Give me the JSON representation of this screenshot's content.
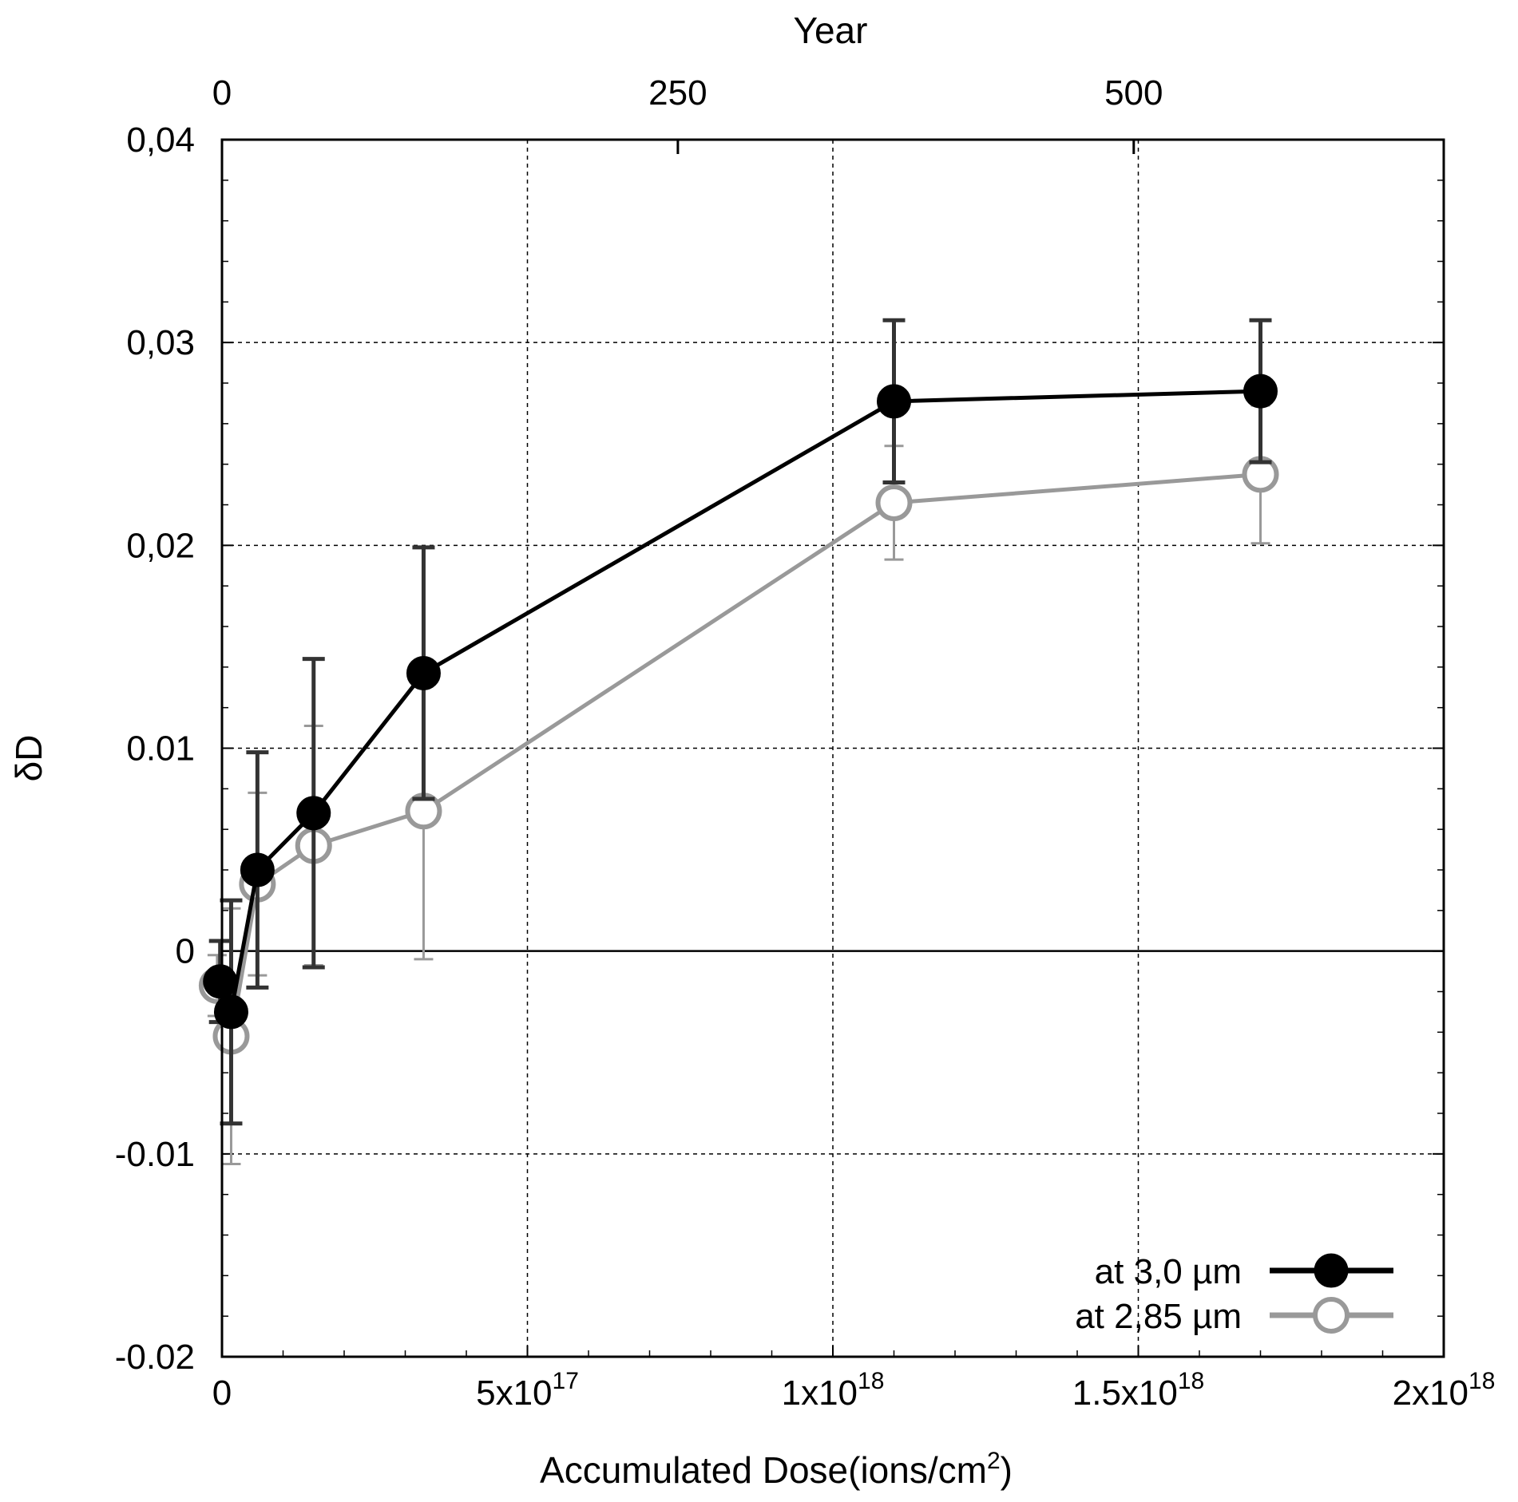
{
  "chart_data": {
    "type": "line",
    "xlabel": "Accumulated Dose(ions/cm",
    "xlabel_sup": "2",
    "xlabel_close": ")",
    "ylabel": "δD",
    "x2label": "Year",
    "xlim": [
      0,
      2e+18
    ],
    "ylim": [
      -0.02,
      0.04
    ],
    "x2lim": [
      0,
      670
    ],
    "grid": true,
    "legend_position": "bottom-right",
    "x_ticks": [
      {
        "value": 0,
        "base": "0",
        "exp": ""
      },
      {
        "value": 5e+17,
        "base": "5x10",
        "exp": "17"
      },
      {
        "value": 1e+18,
        "base": "1x10",
        "exp": "18"
      },
      {
        "value": 1.5e+18,
        "base": "1.5x10",
        "exp": "18"
      },
      {
        "value": 2e+18,
        "base": "2x10",
        "exp": "18"
      }
    ],
    "y_ticks": [
      {
        "value": -0.02,
        "label": "-0.02"
      },
      {
        "value": -0.01,
        "label": "-0.01"
      },
      {
        "value": 0,
        "label": "0"
      },
      {
        "value": 0.01,
        "label": "0.01"
      },
      {
        "value": 0.02,
        "label": "0,02"
      },
      {
        "value": 0.03,
        "label": "0,03"
      },
      {
        "value": 0.04,
        "label": "0,04"
      }
    ],
    "x2_ticks": [
      {
        "value": 0,
        "label": "0"
      },
      {
        "value": 250,
        "label": "250"
      },
      {
        "value": 500,
        "label": "500"
      }
    ],
    "series": [
      {
        "name": "at 3,0 µm",
        "color": "#000000",
        "marker": "filled-circle",
        "points": [
          {
            "x": -3000000000000000.0,
            "y": -0.0015,
            "err": 0.002
          },
          {
            "x": 1.5e+16,
            "y": -0.003,
            "err": 0.0055
          },
          {
            "x": 5.8e+16,
            "y": 0.004,
            "err": 0.0058
          },
          {
            "x": 1.5e+17,
            "y": 0.0068,
            "err": 0.0076
          },
          {
            "x": 3.3e+17,
            "y": 0.0137,
            "err": 0.0062
          },
          {
            "x": 1.1e+18,
            "y": 0.0271,
            "err": 0.004
          },
          {
            "x": 1.7e+18,
            "y": 0.0276,
            "err": 0.0035
          }
        ]
      },
      {
        "name": "at 2,85 µm",
        "color": "#999999",
        "marker": "open-circle",
        "points": [
          {
            "x": -8000000000000000.0,
            "y": -0.0017,
            "err": 0.0015
          },
          {
            "x": 1.5e+16,
            "y": -0.0042,
            "err": 0.0063
          },
          {
            "x": 5.8e+16,
            "y": 0.0033,
            "err": 0.0045
          },
          {
            "x": 1.5e+17,
            "y": 0.0052,
            "err": 0.0059
          },
          {
            "x": 3.3e+17,
            "y": 0.0069,
            "err": 0.0073
          },
          {
            "x": 1.1e+18,
            "y": 0.0221,
            "err": 0.0028
          },
          {
            "x": 1.7e+18,
            "y": 0.0235,
            "err": 0.0034
          }
        ]
      }
    ]
  }
}
